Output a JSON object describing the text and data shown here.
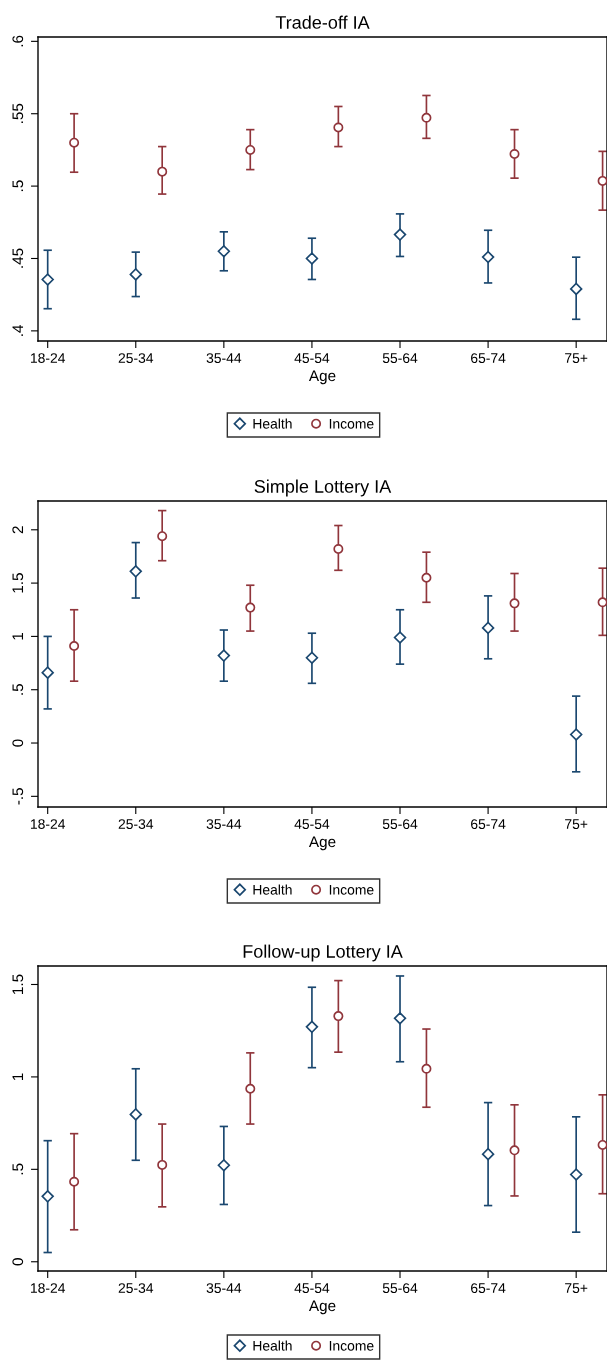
{
  "chart_data": [
    {
      "type": "scatter",
      "title": "Trade-off IA",
      "xlabel": "Age",
      "categories": [
        "18-24",
        "25-34",
        "35-44",
        "45-54",
        "55-64",
        "65-74",
        "75+"
      ],
      "ylim": [
        0.393,
        0.603
      ],
      "yticks": [
        {
          "value": 0.4,
          "label": ".4"
        },
        {
          "value": 0.45,
          "label": ".45"
        },
        {
          "value": 0.5,
          "label": ".5"
        },
        {
          "value": 0.55,
          "label": ".55"
        },
        {
          "value": 0.6,
          "label": ".6"
        }
      ],
      "grid": false,
      "legend": "bottom",
      "series": [
        {
          "name": "Health",
          "color": "#1a476f",
          "marker": "diamond",
          "values": [
            0.4355,
            0.439,
            0.455,
            0.45,
            0.4665,
            0.451,
            0.429
          ],
          "errors": [
            [
              0.4153,
              0.4557
            ],
            [
              0.4237,
              0.4544
            ],
            [
              0.4415,
              0.4684
            ],
            [
              0.4355,
              0.464
            ],
            [
              0.4514,
              0.4808
            ],
            [
              0.4331,
              0.4695
            ],
            [
              0.408,
              0.4509
            ]
          ]
        },
        {
          "name": "Income",
          "color": "#90353b",
          "marker": "circle",
          "values": [
            0.53,
            0.51,
            0.525,
            0.5405,
            0.5472,
            0.5222,
            0.5036
          ],
          "errors": [
            [
              0.5096,
              0.55
            ],
            [
              0.4945,
              0.5273
            ],
            [
              0.5114,
              0.539
            ],
            [
              0.5273,
              0.555
            ],
            [
              0.533,
              0.5626
            ],
            [
              0.5055,
              0.539
            ],
            [
              0.4834,
              0.524
            ]
          ]
        }
      ]
    },
    {
      "type": "scatter",
      "title": "Simple Lottery IA",
      "xlabel": "Age",
      "categories": [
        "18-24",
        "25-34",
        "35-44",
        "45-54",
        "55-64",
        "65-74",
        "75+"
      ],
      "ylim": [
        -0.6,
        2.27
      ],
      "yticks": [
        {
          "value": -0.5,
          "label": "-.5"
        },
        0,
        {
          "value": 0.5,
          "label": ".5"
        },
        1,
        1.5,
        2
      ],
      "grid": false,
      "legend": "bottom",
      "series": [
        {
          "name": "Health",
          "color": "#1a476f",
          "marker": "diamond",
          "values": [
            0.66,
            1.61,
            0.82,
            0.8,
            0.99,
            1.08,
            0.08
          ],
          "errors": [
            [
              0.32,
              1.0
            ],
            [
              1.36,
              1.88
            ],
            [
              0.58,
              1.06
            ],
            [
              0.56,
              1.03
            ],
            [
              0.74,
              1.25
            ],
            [
              0.79,
              1.38
            ],
            [
              -0.27,
              0.44
            ]
          ]
        },
        {
          "name": "Income",
          "color": "#90353b",
          "marker": "circle",
          "values": [
            0.91,
            1.94,
            1.27,
            1.82,
            1.55,
            1.31,
            1.32
          ],
          "errors": [
            [
              0.58,
              1.25
            ],
            [
              1.71,
              2.18
            ],
            [
              1.05,
              1.48
            ],
            [
              1.62,
              2.04
            ],
            [
              1.32,
              1.79
            ],
            [
              1.05,
              1.59
            ],
            [
              1.01,
              1.64
            ]
          ]
        }
      ]
    },
    {
      "type": "scatter",
      "title": "Follow-up Lottery IA",
      "xlabel": "Age",
      "categories": [
        "18-24",
        "25-34",
        "35-44",
        "45-54",
        "55-64",
        "65-74",
        "75+"
      ],
      "ylim": [
        -0.05,
        1.6
      ],
      "yticks": [
        0,
        {
          "value": 0.5,
          "label": ".5"
        },
        1,
        1.5
      ],
      "grid": false,
      "legend": "bottom",
      "series": [
        {
          "name": "Health",
          "color": "#1a476f",
          "marker": "diamond",
          "values": [
            0.354,
            0.797,
            0.522,
            1.271,
            1.317,
            0.582,
            0.472
          ],
          "errors": [
            [
              0.05,
              0.655
            ],
            [
              0.549,
              1.044
            ],
            [
              0.31,
              0.732
            ],
            [
              1.05,
              1.485
            ],
            [
              1.082,
              1.546
            ],
            [
              0.304,
              0.861
            ],
            [
              0.16,
              0.784
            ]
          ]
        },
        {
          "name": "Income",
          "color": "#90353b",
          "marker": "circle",
          "values": [
            0.433,
            0.524,
            0.936,
            1.329,
            1.044,
            0.603,
            0.632
          ],
          "errors": [
            [
              0.173,
              0.693
            ],
            [
              0.297,
              0.745
            ],
            [
              0.745,
              1.13
            ],
            [
              1.134,
              1.521
            ],
            [
              0.836,
              1.259
            ],
            [
              0.356,
              0.849
            ],
            [
              0.368,
              0.903
            ]
          ]
        }
      ]
    }
  ]
}
